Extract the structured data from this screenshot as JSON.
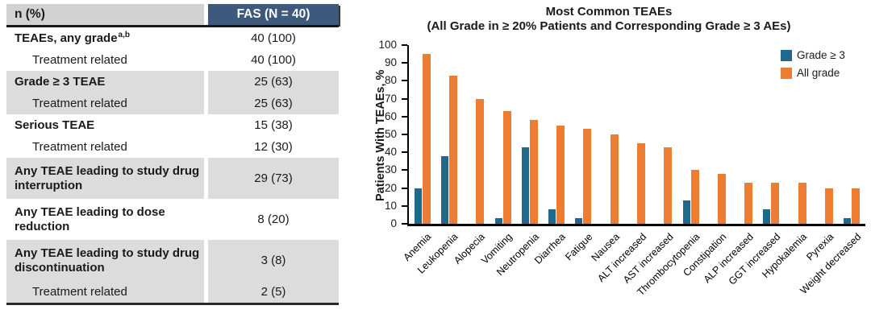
{
  "table": {
    "header": {
      "col1": "n (%)",
      "col2": "FAS (N = 40)"
    },
    "rows": [
      {
        "label": "TEAEs, any grade",
        "sup": "a,b",
        "value": "40 (100)",
        "bold": true,
        "indent": false,
        "shaded": false,
        "double": false
      },
      {
        "label": "Treatment related",
        "value": "40 (100)",
        "bold": false,
        "indent": true,
        "shaded": false,
        "double": false
      },
      {
        "label": "Grade ≥ 3 TEAE",
        "value": "25 (63)",
        "bold": true,
        "indent": false,
        "shaded": true,
        "double": false
      },
      {
        "label": "Treatment related",
        "value": "25 (63)",
        "bold": false,
        "indent": true,
        "shaded": true,
        "double": false
      },
      {
        "label": "Serious TEAE",
        "value": "15 (38)",
        "bold": true,
        "indent": false,
        "shaded": false,
        "double": false
      },
      {
        "label": "Treatment related",
        "value": "12 (30)",
        "bold": false,
        "indent": true,
        "shaded": false,
        "double": false
      },
      {
        "label": "Any TEAE leading to study drug interruption",
        "value": "29 (73)",
        "bold": true,
        "indent": false,
        "shaded": true,
        "double": true
      },
      {
        "label": "Any TEAE leading to dose reduction",
        "value": "8 (20)",
        "bold": true,
        "indent": false,
        "shaded": false,
        "double": true
      },
      {
        "label": "Any TEAE leading to study drug discontinuation",
        "value": "3 (8)",
        "bold": true,
        "indent": false,
        "shaded": true,
        "double": true
      },
      {
        "label": "Treatment related",
        "value": "2 (5)",
        "bold": false,
        "indent": true,
        "shaded": true,
        "double": false
      }
    ]
  },
  "chart_data": {
    "type": "bar",
    "title": "Most Common TEAEs",
    "subtitle": "(All Grade in ≥ 20% Patients and Corresponding Grade ≥ 3 AEs)",
    "ylabel": "Patients With TEAEs, %",
    "ylim": [
      0,
      100
    ],
    "yticks": [
      0,
      10,
      20,
      30,
      40,
      50,
      60,
      70,
      80,
      90,
      100
    ],
    "grid": false,
    "legend_position": "top-right",
    "categories": [
      "Anemia",
      "Leukopenia",
      "Alopecia",
      "Vomiting",
      "Neutropenia",
      "Diarrhea",
      "Fatigue",
      "Nausea",
      "ALT increased",
      "AST increased",
      "Thrombocytopenia",
      "Constipation",
      "ALP increased",
      "GGT increased",
      "Hypokalemia",
      "Pyrexia",
      "Weight decreased"
    ],
    "series": [
      {
        "name": "Grade ≥ 3",
        "color": "#1f6a8c",
        "values": [
          20,
          38,
          0,
          3,
          43,
          8,
          3,
          0,
          0,
          0,
          13,
          0,
          0,
          8,
          0,
          0,
          3
        ]
      },
      {
        "name": "All grade",
        "color": "#ec7d33",
        "values": [
          95,
          83,
          70,
          63,
          58,
          55,
          53,
          50,
          45,
          43,
          30,
          28,
          23,
          23,
          23,
          20,
          20
        ]
      }
    ]
  },
  "colors": {
    "table_header_bg": "#3d5a7c",
    "table_header_gray": "#d2d2d2",
    "row_shade": "#dcdcdc",
    "grade3_blue": "#1f6a8c",
    "all_grade_orange": "#ec7d33"
  }
}
